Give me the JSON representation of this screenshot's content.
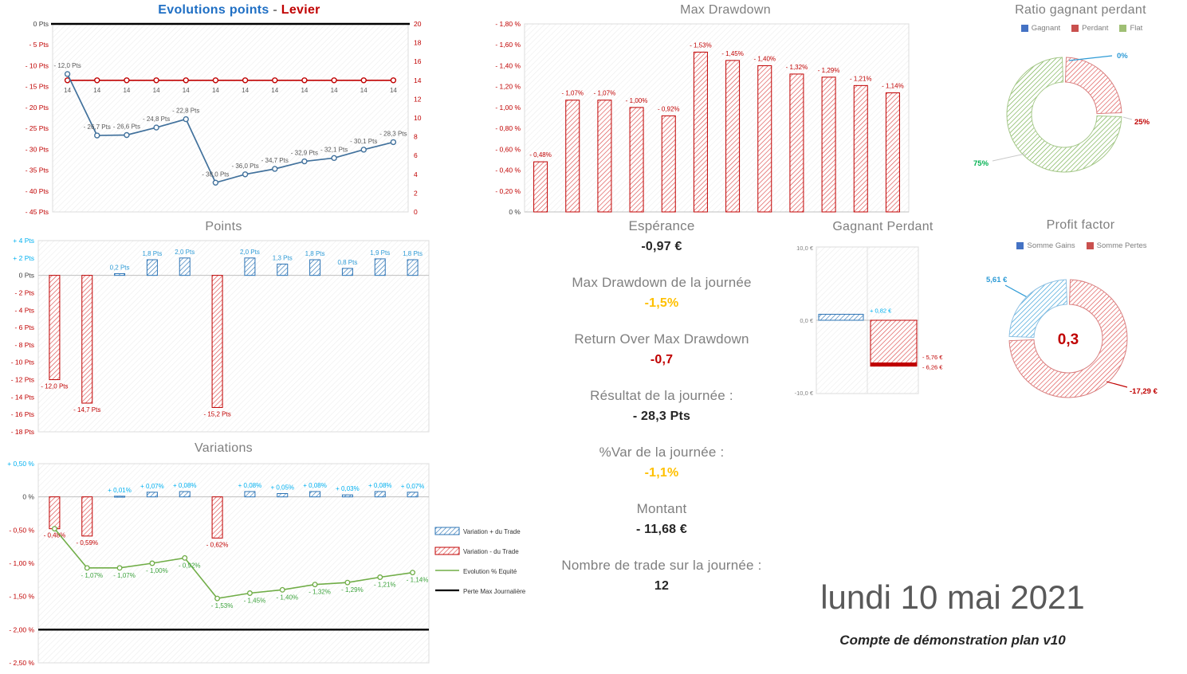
{
  "colors": {
    "blue": "#2E75B6",
    "blue_line": "#41719C",
    "cyan": "#00B0F0",
    "label_blue": "#2E9BD6",
    "red": "#C00000",
    "bar_red": "#DD4B4B",
    "green": "#70AD47",
    "green_label": "#3DA33D",
    "gold": "#FFC000",
    "gray": "#7F7F7F",
    "dark": "#404040"
  },
  "titles": {
    "evolutions_main": "Evolutions points",
    "evolutions_sep": " - ",
    "evolutions_levier": "Levier",
    "points": "Points",
    "variations": "Variations",
    "max_drawdown": "Max Drawdown",
    "gagnant_perdant": "Gagnant Perdant",
    "ratio": "Ratio gagnant perdant",
    "profit_factor": "Profit factor"
  },
  "stats": [
    {
      "label": "Espérance",
      "value": "-0,97 €"
    },
    {
      "label": "Max Drawdown de la journée",
      "value": "-1,5%"
    },
    {
      "label": "Return Over Max Drawdown",
      "value": "-0,7"
    },
    {
      "label": "Résultat de la journée :",
      "value": "- 28,3 Pts"
    },
    {
      "label": "%Var de la journée :",
      "value": "-1,1%"
    },
    {
      "label": "Montant",
      "value": "- 11,68 €"
    },
    {
      "label": "Nombre de trade sur la journée :",
      "value": "12"
    }
  ],
  "footer": {
    "date": "lundi 10 mai 2021",
    "account": "Compte de démonstration plan v10"
  },
  "chart_data": [
    {
      "id": "evolutions",
      "type": "line",
      "title": "Evolutions points - Levier",
      "x_count": 12,
      "series": [
        {
          "name": "Evolution points",
          "axis": "left",
          "color": "#41719C",
          "values": [
            -12.0,
            -26.7,
            -26.6,
            -24.8,
            -22.8,
            -38.0,
            -36.0,
            -34.7,
            -32.9,
            -32.1,
            -30.1,
            -28.3
          ],
          "labels": [
            "- 12,0 Pts",
            "- 26,7 Pts",
            "- 26,6 Pts",
            "- 24,8 Pts",
            "- 22,8 Pts",
            "- 38,0 Pts",
            "- 36,0 Pts",
            "- 34,7 Pts",
            "- 32,9 Pts",
            "- 32,1 Pts",
            "- 30,1 Pts",
            "- 28,3 Pts"
          ]
        },
        {
          "name": "Levier",
          "axis": "right",
          "color": "#C00000",
          "values": [
            14,
            14,
            14,
            14,
            14,
            14,
            14,
            14,
            14,
            14,
            14,
            14
          ],
          "labels": [
            "14",
            "14",
            "14",
            "14",
            "14",
            "14",
            "14",
            "14",
            "14",
            "14",
            "14",
            "14"
          ]
        }
      ],
      "left_axis": {
        "max": 0,
        "min": -45,
        "ticks": [
          "0 Pts",
          "- 5 Pts",
          "- 10 Pts",
          "- 15 Pts",
          "- 20 Pts",
          "- 25 Pts",
          "- 30 Pts",
          "- 35 Pts",
          "- 40 Pts",
          "- 45 Pts"
        ]
      },
      "right_axis": {
        "min": 0,
        "max": 20,
        "ticks": [
          "0",
          "2",
          "4",
          "6",
          "8",
          "10",
          "12",
          "14",
          "16",
          "18",
          "20"
        ]
      },
      "zero_line": true
    },
    {
      "id": "points",
      "type": "bar",
      "title": "Points",
      "values": [
        -12.0,
        -14.7,
        0.2,
        1.8,
        2.0,
        -15.2,
        2.0,
        1.3,
        1.8,
        0.8,
        1.9,
        1.8
      ],
      "labels": [
        "- 12,0 Pts",
        "- 14,7 Pts",
        "0,2 Pts",
        "1,8 Pts",
        "2,0 Pts",
        "- 15,2 Pts",
        "2,0 Pts",
        "1,3 Pts",
        "1,8 Pts",
        "0,8 Pts",
        "1,9 Pts",
        "1,8 Pts"
      ],
      "ylim": [
        -18,
        4
      ],
      "yticks": [
        "+ 4 Pts",
        "+ 2 Pts",
        "0 Pts",
        "- 2 Pts",
        "- 4 Pts",
        "- 6 Pts",
        "- 8 Pts",
        "- 10 Pts",
        "- 12 Pts",
        "- 14 Pts",
        "- 16 Pts",
        "- 18 Pts"
      ]
    },
    {
      "id": "variations",
      "type": "bar+line",
      "title": "Variations",
      "bars": [
        -0.48,
        -0.59,
        0.01,
        0.07,
        0.08,
        -0.62,
        0.08,
        0.05,
        0.08,
        0.03,
        0.08,
        0.07
      ],
      "bar_labels": [
        "- 0,48%",
        "- 0,59%",
        "+ 0,01%",
        "+ 0,07%",
        "+ 0,08%",
        "- 0,62%",
        "+ 0,08%",
        "+ 0,05%",
        "+ 0,08%",
        "+ 0,03%",
        "+ 0,08%",
        "+ 0,07%"
      ],
      "line": [
        -0.48,
        -1.07,
        -1.07,
        -1.0,
        -0.92,
        -1.53,
        -1.45,
        -1.4,
        -1.32,
        -1.29,
        -1.21,
        -1.14
      ],
      "line_labels": [
        "",
        "- 1,07%",
        "- 1,07%",
        "- 1,00%",
        "- 0,92%",
        "- 1,53%",
        "- 1,45%",
        "- 1,40%",
        "- 1,32%",
        "- 1,29%",
        "- 1,21%",
        "- 1,14%"
      ],
      "max_loss_line": -2.0,
      "ylim": [
        -2.5,
        0.5
      ],
      "yticks": [
        "+ 0,50 %",
        "0 %",
        "- 0,50 %",
        "- 1,00 %",
        "- 1,50 %",
        "- 2,00 %",
        "- 2,50 %"
      ],
      "legend": [
        "Variation + du Trade",
        "Variation - du Trade",
        "Evolution % Equité",
        "Perte Max Journalière"
      ]
    },
    {
      "id": "max_drawdown",
      "type": "bar",
      "title": "Max Drawdown",
      "values": [
        -0.48,
        -1.07,
        -1.07,
        -1.0,
        -0.92,
        -1.53,
        -1.45,
        -1.4,
        -1.32,
        -1.29,
        -1.21,
        -1.14
      ],
      "labels": [
        "- 0,48%",
        "- 1,07%",
        "- 1,07%",
        "- 1,00%",
        "- 0,92%",
        "- 1,53%",
        "- 1,45%",
        "- 1,40%",
        "- 1,32%",
        "- 1,29%",
        "- 1,21%",
        "- 1,14%"
      ],
      "ylim": [
        0,
        -1.8
      ],
      "yticks": [
        "- 1,80 %",
        "- 1,60 %",
        "- 1,40 %",
        "- 1,20 %",
        "- 1,00 %",
        "- 0,80 %",
        "- 0,60 %",
        "- 0,40 %",
        "- 0,20 %",
        "0 %"
      ]
    },
    {
      "id": "gagnant_perdant",
      "type": "bar",
      "title": "Gagnant Perdant",
      "gain_value": 0.82,
      "gain_label": "+ 0,82 €",
      "loss_value": -6.26,
      "loss_inner": -5.76,
      "loss_labels": [
        "- 5,76 €",
        "- 6,26 €"
      ],
      "ylim": [
        -10,
        10
      ],
      "yticks": [
        "10,0 €",
        "0,0 €",
        "-10,0 €"
      ]
    },
    {
      "id": "ratio",
      "type": "pie",
      "title": "Ratio gagnant perdant",
      "segments": [
        {
          "name": "Gagnant",
          "pct": 0,
          "label": "0%",
          "color": "#2E9BD6"
        },
        {
          "name": "Perdant",
          "pct": 25,
          "label": "25%",
          "color": "#C00000"
        },
        {
          "name": "Flat",
          "pct": 75,
          "label": "75%",
          "color": "#70AD47"
        }
      ],
      "legend": [
        "Gagnant",
        "Perdant",
        "Flat"
      ],
      "legend_colors": [
        "#4472C4",
        "#C9504E",
        "#9FBF74"
      ]
    },
    {
      "id": "profit_factor",
      "type": "pie",
      "title": "Profit factor",
      "value": "0,3",
      "segments": [
        {
          "name": "Somme Gains",
          "value": 5.61,
          "label": "5,61 €",
          "color": "#2E9BD6"
        },
        {
          "name": "Somme Pertes",
          "value": -17.29,
          "label": "-17,29 €",
          "color": "#C00000"
        }
      ],
      "legend": [
        "Somme Gains",
        "Somme Pertes"
      ],
      "legend_colors": [
        "#4472C4",
        "#C9504E"
      ]
    }
  ]
}
